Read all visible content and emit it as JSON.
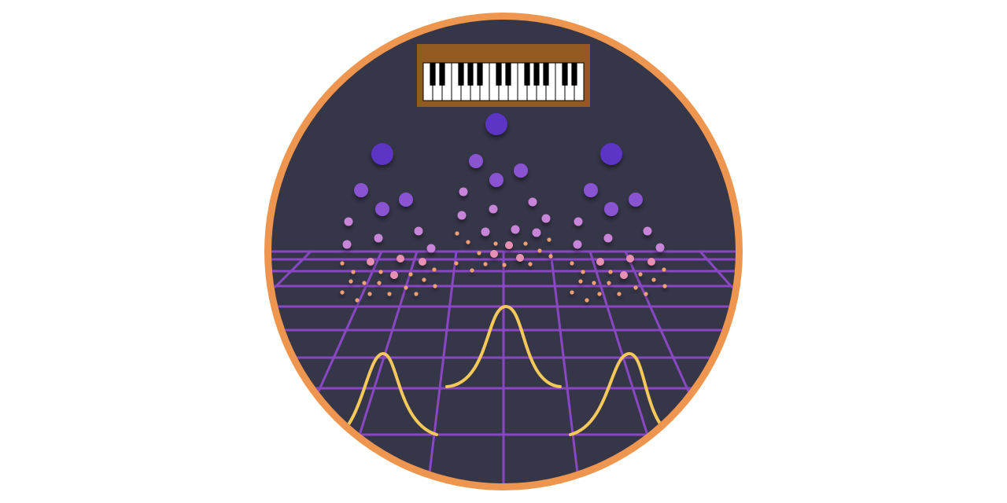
{
  "colors": {
    "background": "#ffffff",
    "ring": "#ee9650",
    "disc": "#363649",
    "grid": "#8a47c4",
    "curve": "#f5c85a",
    "piano_frame": "#935a22",
    "piano_white_key": "#ffffff",
    "piano_black_key": "#000000",
    "dot_large": "#5b34c4",
    "dot_medium": "#8a52d2",
    "dot_light": "#c884d8",
    "dot_pink": "#e890b4",
    "dot_orange": "#f0a070"
  },
  "icons": {
    "piano": "piano-keyboard-icon",
    "particles": "note-particle-icon",
    "curves": "bell-curve-icon"
  },
  "piano": {
    "white_key_count": 17
  }
}
